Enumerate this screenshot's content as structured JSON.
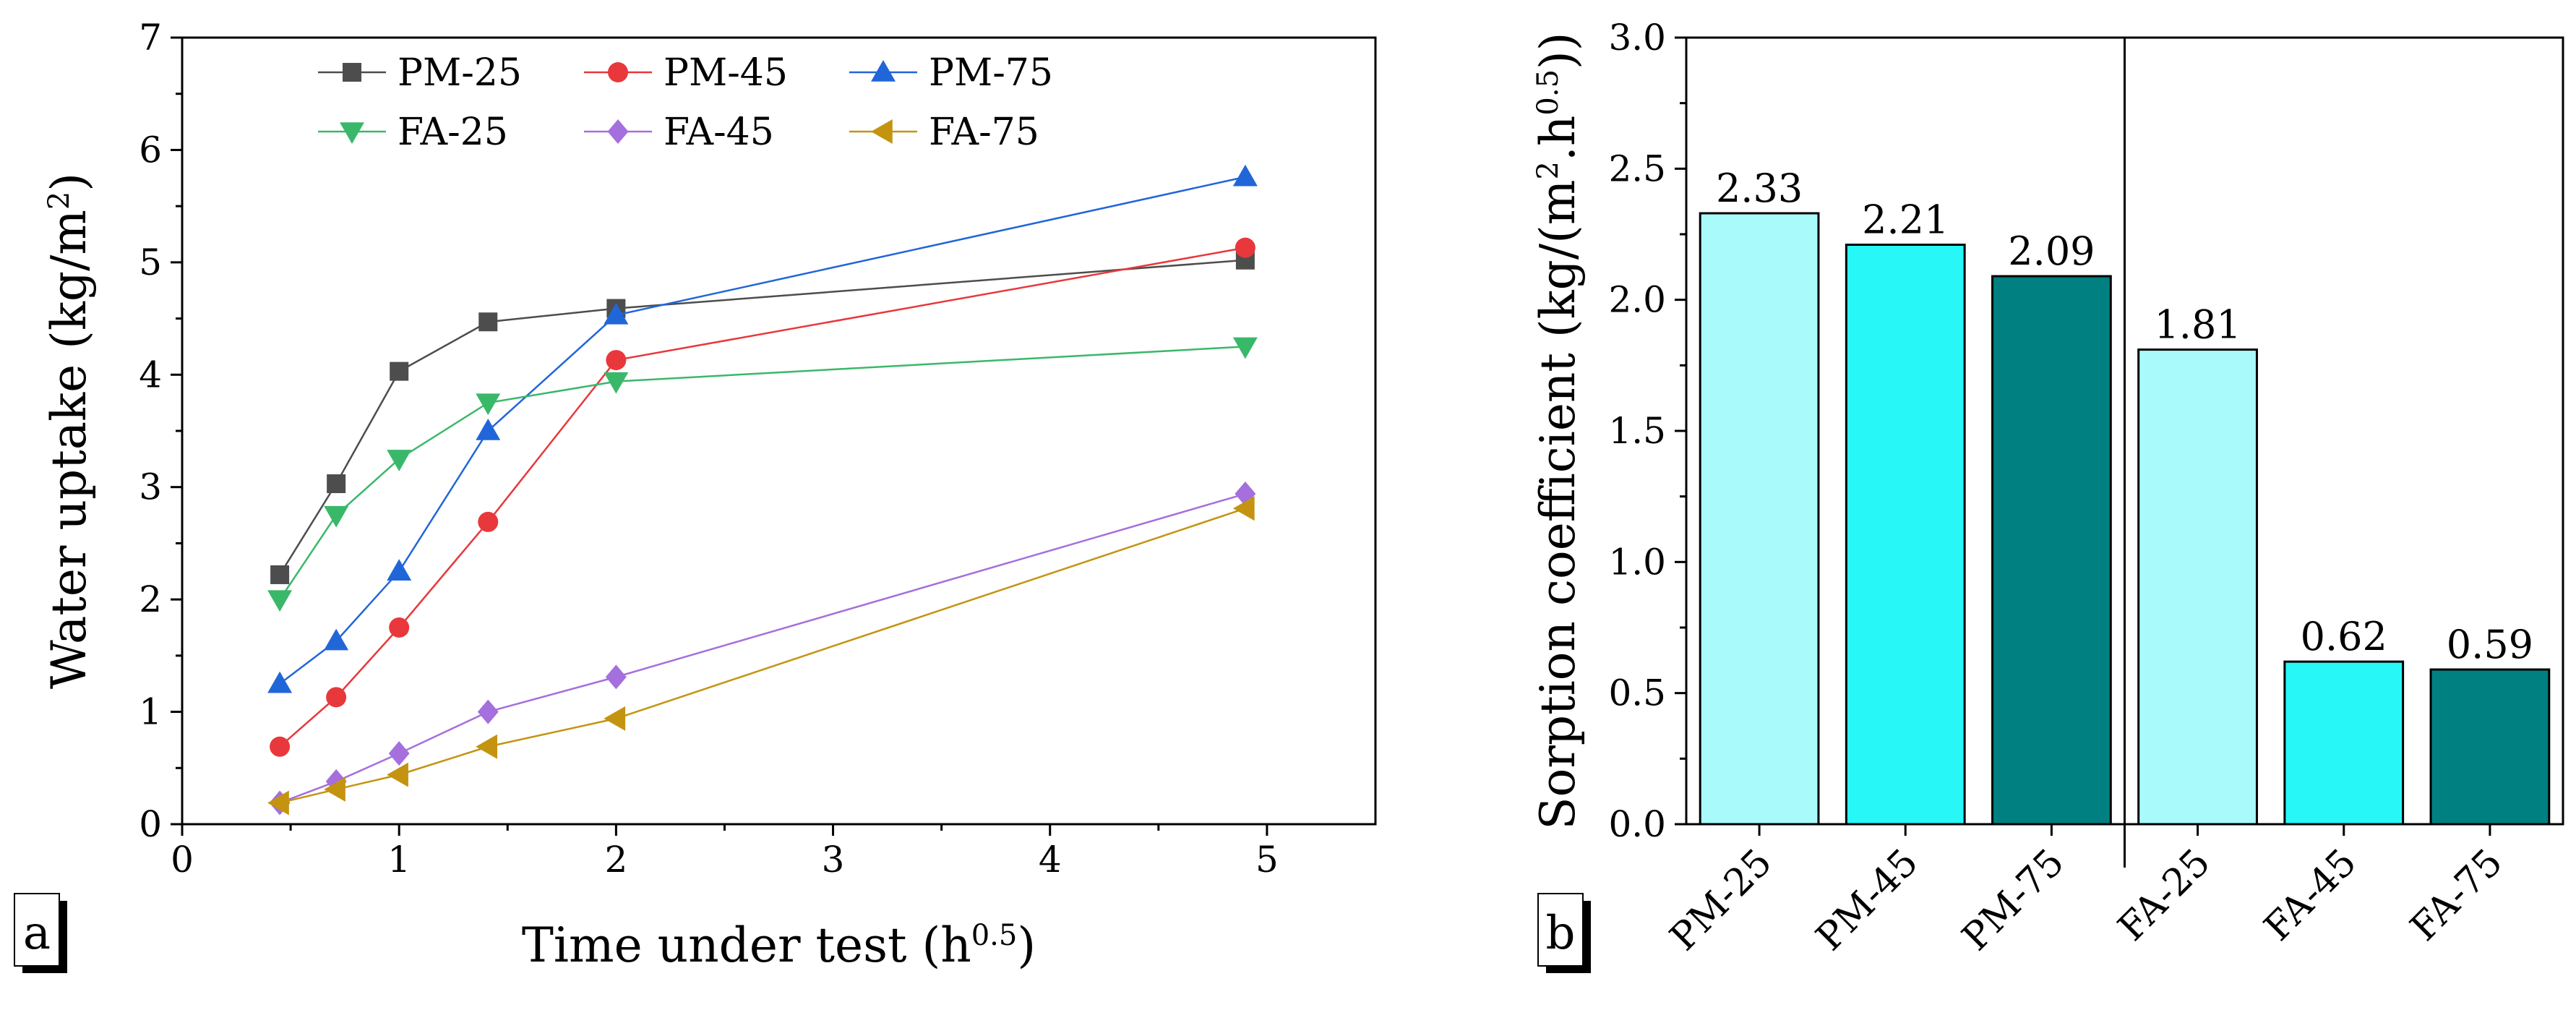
{
  "chart_data": [
    {
      "panel": "a",
      "type": "line",
      "xlabel": "Time under test (h",
      "xlabel_sup": "0.5",
      "xlabel_end": ")",
      "ylabel": "Water uptake (kg/m",
      "ylabel_sup": "2",
      "ylabel_end": ")",
      "xlim": [
        0,
        5.5
      ],
      "ylim": [
        0,
        7
      ],
      "xticks": [
        "0",
        "1",
        "2",
        "3",
        "4",
        "5"
      ],
      "yticks": [
        "0",
        "1",
        "2",
        "3",
        "4",
        "5",
        "6",
        "7"
      ],
      "x": [
        0.45,
        0.71,
        1.0,
        1.41,
        2.0,
        4.9
      ],
      "series": [
        {
          "name": "PM-25",
          "marker": "square",
          "color": "#4d4d4d",
          "values": [
            2.22,
            3.03,
            4.03,
            4.47,
            4.59,
            5.02
          ]
        },
        {
          "name": "PM-45",
          "marker": "circle",
          "color": "#e8383c",
          "values": [
            0.69,
            1.13,
            1.75,
            2.69,
            4.13,
            5.13
          ]
        },
        {
          "name": "PM-75",
          "marker": "triangle-up",
          "color": "#2166d9",
          "values": [
            1.25,
            1.63,
            2.25,
            3.5,
            4.53,
            5.76
          ]
        },
        {
          "name": "FA-25",
          "marker": "triangle-down",
          "color": "#3ab86a",
          "values": [
            2.0,
            2.75,
            3.25,
            3.75,
            3.94,
            4.25
          ]
        },
        {
          "name": "FA-45",
          "marker": "diamond",
          "color": "#a56fdd",
          "values": [
            0.19,
            0.38,
            0.63,
            1.0,
            1.31,
            2.94
          ]
        },
        {
          "name": "FA-75",
          "marker": "triangle-left",
          "color": "#c49410",
          "values": [
            0.19,
            0.31,
            0.44,
            0.69,
            0.94,
            2.81
          ]
        }
      ],
      "legend_position": "top"
    },
    {
      "panel": "b",
      "type": "bar",
      "ylabel": "Sorption coefficient (kg/(m",
      "ylabel_sup1": "2",
      "ylabel_mid": ".h",
      "ylabel_sup2": "0.5",
      "ylabel_end": "))",
      "ylim": [
        0,
        3.0
      ],
      "yticks": [
        "0.0",
        "0.5",
        "1.0",
        "1.5",
        "2.0",
        "2.5",
        "3.0"
      ],
      "categories": [
        "PM-25",
        "PM-45",
        "PM-75",
        "FA-25",
        "FA-45",
        "FA-75"
      ],
      "values": [
        2.33,
        2.21,
        2.09,
        1.81,
        0.62,
        0.59
      ],
      "value_labels": [
        "2.33",
        "2.21",
        "2.09",
        "1.81",
        "0.62",
        "0.59"
      ],
      "colors": [
        "#a9fbfb",
        "#27f7f7",
        "#008080",
        "#a9fbfb",
        "#27f7f7",
        "#008080"
      ],
      "group_divider": "between PM-75 and FA-25"
    }
  ]
}
